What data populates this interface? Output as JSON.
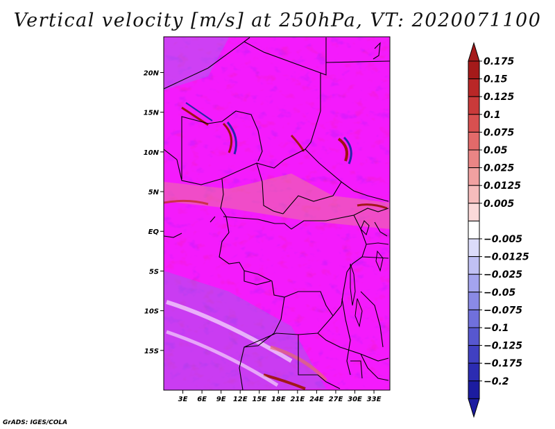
{
  "title": "Vertical velocity [m/s] at 250hPa, VT: 2020071100",
  "credit": "GrADS: IGES/COLA",
  "map": {
    "lon_range": [
      0,
      35.5
    ],
    "lat_range": [
      -20,
      24.5
    ],
    "lat_ticks": [
      {
        "value": 20,
        "label": "20N"
      },
      {
        "value": 15,
        "label": "15N"
      },
      {
        "value": 10,
        "label": "10N"
      },
      {
        "value": 5,
        "label": "5N"
      },
      {
        "value": 0,
        "label": "EQ"
      },
      {
        "value": -5,
        "label": "5S"
      },
      {
        "value": -10,
        "label": "10S"
      },
      {
        "value": -15,
        "label": "15S"
      }
    ],
    "lon_ticks": [
      {
        "value": 3,
        "label": "3E"
      },
      {
        "value": 6,
        "label": "6E"
      },
      {
        "value": 9,
        "label": "9E"
      },
      {
        "value": 12,
        "label": "12E"
      },
      {
        "value": 15,
        "label": "15E"
      },
      {
        "value": 18,
        "label": "18E"
      },
      {
        "value": 21,
        "label": "21E"
      },
      {
        "value": 24,
        "label": "24E"
      },
      {
        "value": 27,
        "label": "27E"
      },
      {
        "value": 30,
        "label": "30E"
      },
      {
        "value": 33,
        "label": "33E"
      }
    ]
  },
  "colorbar": {
    "levels": [
      {
        "label": "0.175",
        "color": "#a51a1a"
      },
      {
        "label": "0.15",
        "color": "#b92727"
      },
      {
        "label": "0.125",
        "color": "#c93a3a"
      },
      {
        "label": "0.1",
        "color": "#d85050"
      },
      {
        "label": "0.075",
        "color": "#e26a6a"
      },
      {
        "label": "0.05",
        "color": "#ea8585"
      },
      {
        "label": "0.025",
        "color": "#f1a1a1"
      },
      {
        "label": "0.0125",
        "color": "#f6bcbc"
      },
      {
        "label": "0.005",
        "color": "#fbd9d9"
      },
      {
        "label": "",
        "color": "#ffffff"
      },
      {
        "label": "−0.005",
        "color": "#dcdcfa"
      },
      {
        "label": "−0.0125",
        "color": "#c0c0f4"
      },
      {
        "label": "−0.025",
        "color": "#a4a4ee"
      },
      {
        "label": "−0.05",
        "color": "#8a8ae6"
      },
      {
        "label": "−0.075",
        "color": "#7070dc"
      },
      {
        "label": "−0.1",
        "color": "#5757d0"
      },
      {
        "label": "−0.125",
        "color": "#4040c2"
      },
      {
        "label": "−0.175",
        "color": "#2c2cb2"
      },
      {
        "label": "−0.2",
        "color": "#1c1ca0"
      }
    ],
    "top_triangle_color": "#a51a1a",
    "bottom_triangle_color": "#1c1ca0"
  }
}
